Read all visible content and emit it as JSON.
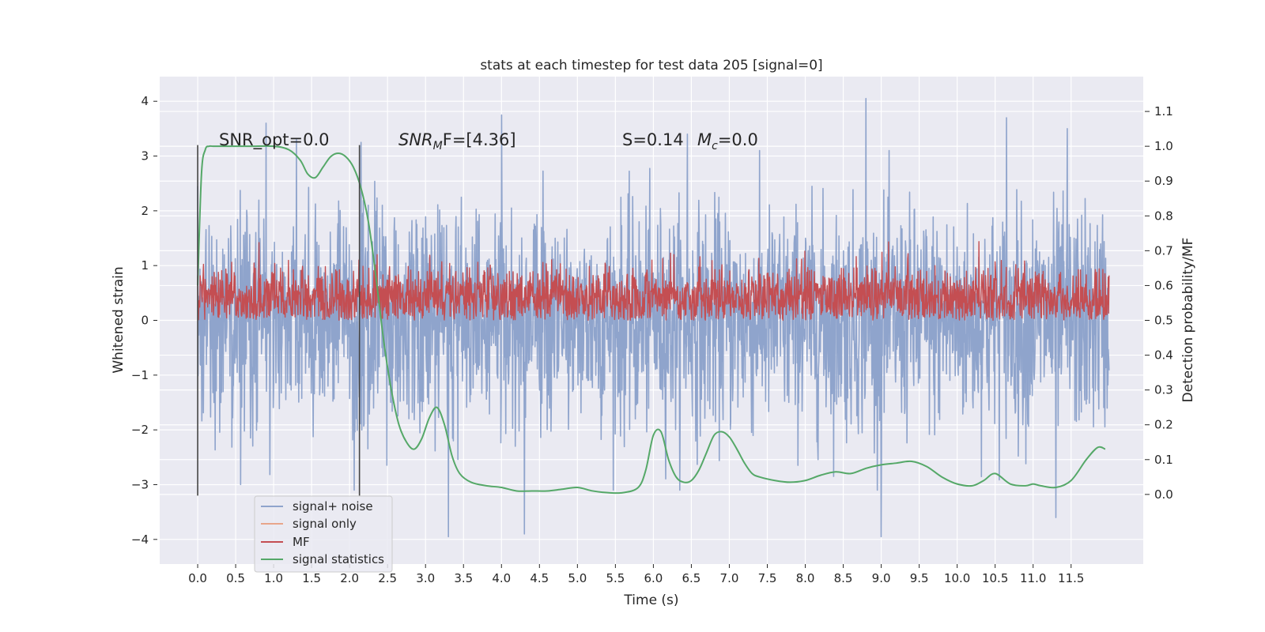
{
  "chart_data": {
    "type": "line",
    "title": "stats at each timestep for test data 205 [signal=0]",
    "xlabel": "Time (s)",
    "ylabel": "Whitened strain",
    "y2label": "Detection probability/MF",
    "xlim": [
      -0.5,
      12.45
    ],
    "ylim": [
      -4.45,
      4.45
    ],
    "y2lim": [
      -0.2,
      1.2
    ],
    "xticks": [
      0.0,
      0.5,
      1.0,
      1.5,
      2.0,
      2.5,
      3.0,
      3.5,
      4.0,
      4.5,
      5.0,
      5.5,
      6.0,
      6.5,
      7.0,
      7.5,
      8.0,
      8.5,
      9.0,
      9.5,
      10.0,
      10.5,
      11.0,
      11.5
    ],
    "xtick_labels": [
      "0.0",
      "0.5",
      "1.0",
      "1.5",
      "2.0",
      "2.5",
      "3.0",
      "3.5",
      "4.0",
      "4.5",
      "5.0",
      "5.5",
      "6.0",
      "6.5",
      "7.0",
      "7.5",
      "8.0",
      "8.5",
      "9.0",
      "9.5",
      "10.0",
      "10.5",
      "11.0",
      "11.5"
    ],
    "yticks": [
      -4,
      -3,
      -2,
      -1,
      0,
      1,
      2,
      3,
      4
    ],
    "ytick_labels": [
      "−4",
      "−3",
      "−2",
      "−1",
      "0",
      "1",
      "2",
      "3",
      "4"
    ],
    "y2ticks": [
      0.0,
      0.1,
      0.2,
      0.3,
      0.4,
      0.5,
      0.6,
      0.7,
      0.8,
      0.9,
      1.0,
      1.1
    ],
    "y2tick_labels": [
      "0.0",
      "0.1",
      "0.2",
      "0.3",
      "0.4",
      "0.5",
      "0.6",
      "0.7",
      "0.8",
      "0.9",
      "1.0",
      "1.1"
    ],
    "grid": true,
    "legend_position": "lower-left",
    "colors": {
      "background": "#eaeaf2",
      "grid": "#ffffff",
      "signal_noise": "#8fa4cc",
      "signal_only": "#e8a58a",
      "mf": "#c44e52",
      "stats": "#55a868",
      "markers": "#444444"
    },
    "annotations": {
      "snr_opt": "SNR_opt=0.0",
      "snr_mf_pre": "SNR",
      "snr_mf_sub": "M",
      "snr_mf_post": "F=[4.36]",
      "s_text": "S=0.14",
      "mc_pre": "M",
      "mc_sub": "c",
      "mc_post": "=0.0"
    },
    "vertical_markers": [
      0.0,
      2.13
    ],
    "vertical_marker_ylim": [
      -3.2,
      3.2
    ],
    "series": [
      {
        "name": "signal+ noise",
        "axis": "left",
        "style": "noise",
        "x_range": [
          0.0,
          12.0
        ],
        "amplitude_sd": 1.0,
        "extreme_peaks": [
          [
            0.0,
            2.45
          ],
          [
            0.9,
            3.6
          ],
          [
            1.3,
            3.3
          ],
          [
            2.15,
            3.25
          ],
          [
            3.3,
            -3.95
          ],
          [
            4.0,
            3.75
          ],
          [
            4.3,
            -3.9
          ],
          [
            6.45,
            3.4
          ],
          [
            8.8,
            4.05
          ],
          [
            9.0,
            -3.95
          ],
          [
            10.65,
            3.7
          ],
          [
            11.3,
            -3.6
          ],
          [
            11.45,
            3.5
          ]
        ]
      },
      {
        "name": "signal only",
        "axis": "left",
        "style": "flat",
        "x": [
          0.0,
          12.0
        ],
        "y": [
          0.0,
          0.0
        ]
      },
      {
        "name": "MF",
        "axis": "right",
        "style": "mf",
        "x_range": [
          0.0,
          12.0
        ],
        "baseline": 0.5,
        "mean_level": 0.565,
        "max_level": 0.65
      },
      {
        "name": "signal statistics",
        "axis": "right",
        "style": "line",
        "x": [
          0.0,
          0.05,
          0.1,
          0.15,
          0.2,
          0.3,
          0.5,
          0.7,
          1.0,
          1.2,
          1.35,
          1.45,
          1.55,
          1.65,
          1.75,
          1.85,
          1.95,
          2.05,
          2.15,
          2.25,
          2.35,
          2.45,
          2.55,
          2.65,
          2.75,
          2.85,
          2.95,
          3.05,
          3.15,
          3.25,
          3.35,
          3.45,
          3.6,
          3.8,
          4.0,
          4.2,
          4.4,
          4.6,
          4.8,
          5.0,
          5.2,
          5.4,
          5.6,
          5.8,
          5.9,
          6.0,
          6.1,
          6.2,
          6.3,
          6.4,
          6.5,
          6.6,
          6.7,
          6.8,
          6.9,
          7.0,
          7.1,
          7.2,
          7.3,
          7.4,
          7.6,
          7.8,
          8.0,
          8.2,
          8.4,
          8.6,
          8.8,
          9.0,
          9.2,
          9.4,
          9.6,
          9.8,
          10.0,
          10.2,
          10.35,
          10.5,
          10.7,
          10.9,
          11.0,
          11.1,
          11.3,
          11.5,
          11.7,
          11.85,
          11.95
        ],
        "y": [
          0.6,
          0.92,
          0.99,
          1.0,
          1.0,
          1.0,
          1.0,
          1.0,
          1.0,
          0.99,
          0.96,
          0.92,
          0.91,
          0.94,
          0.97,
          0.98,
          0.97,
          0.94,
          0.88,
          0.78,
          0.62,
          0.44,
          0.3,
          0.2,
          0.15,
          0.13,
          0.16,
          0.22,
          0.25,
          0.2,
          0.11,
          0.06,
          0.035,
          0.025,
          0.02,
          0.01,
          0.01,
          0.01,
          0.015,
          0.02,
          0.01,
          0.005,
          0.005,
          0.02,
          0.07,
          0.17,
          0.18,
          0.1,
          0.05,
          0.035,
          0.04,
          0.07,
          0.12,
          0.17,
          0.18,
          0.165,
          0.13,
          0.09,
          0.06,
          0.05,
          0.04,
          0.035,
          0.04,
          0.055,
          0.065,
          0.06,
          0.075,
          0.085,
          0.09,
          0.095,
          0.08,
          0.05,
          0.03,
          0.025,
          0.04,
          0.06,
          0.03,
          0.025,
          0.03,
          0.025,
          0.02,
          0.04,
          0.1,
          0.135,
          0.13
        ]
      }
    ]
  }
}
